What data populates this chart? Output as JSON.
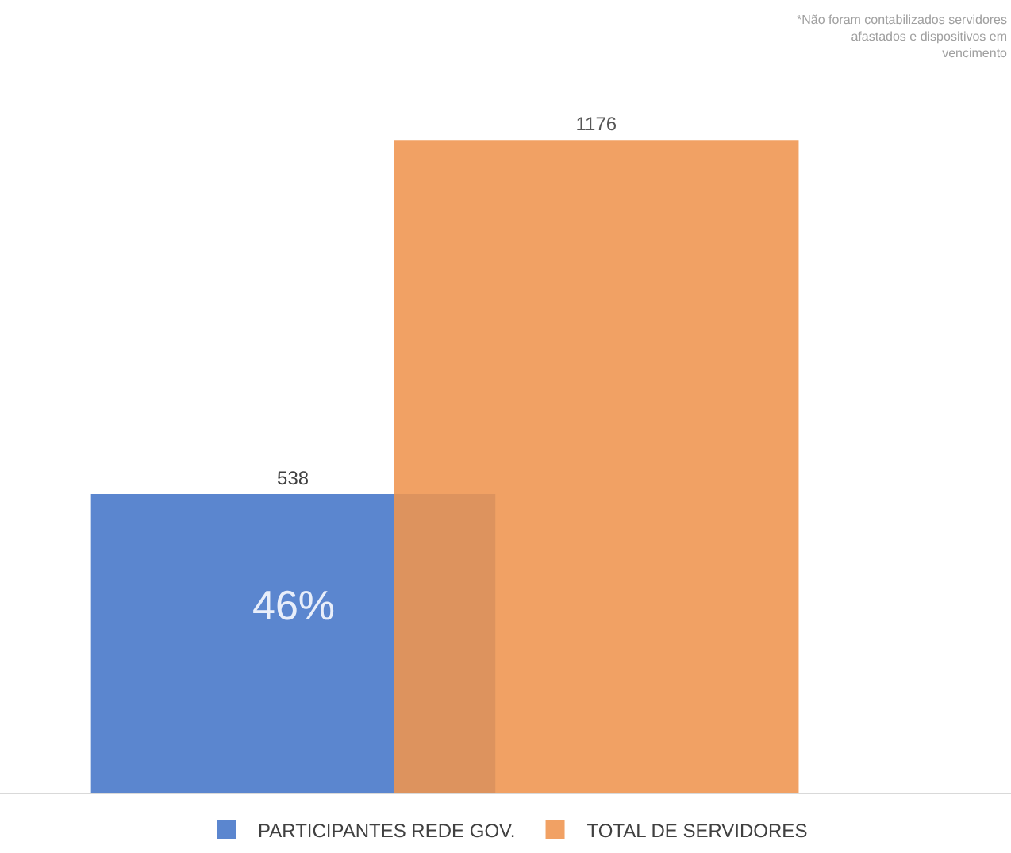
{
  "chart_data": {
    "type": "bar",
    "categories": [
      null
    ],
    "series": [
      {
        "name": "PARTICIPANTES REDE GOV.",
        "color": "#5b86cf",
        "values": [
          538
        ]
      },
      {
        "name": "TOTAL DE SERVIDORES",
        "color": "#f0954f",
        "values": [
          1176
        ]
      }
    ],
    "data_labels": true,
    "legend": "bottom",
    "annotations": [
      "46%",
      "*Não foram contabilizados servidores\nafastados e dispositivos em\nvencimento"
    ]
  }
}
